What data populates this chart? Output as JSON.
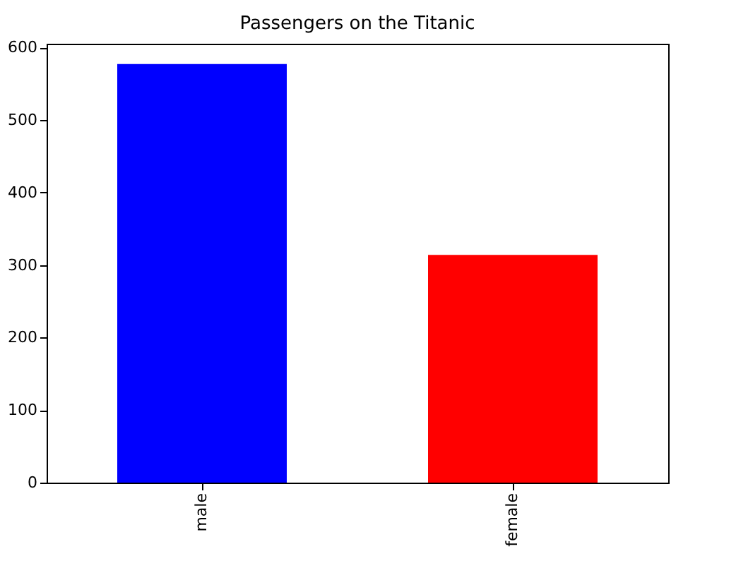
{
  "chart_data": {
    "type": "bar",
    "title": "Passengers on the Titanic",
    "categories": [
      "male",
      "female"
    ],
    "values": [
      577,
      314
    ],
    "colors": [
      "#0000ff",
      "#ff0000"
    ],
    "ylim": [
      0,
      605
    ],
    "yticks": [
      0,
      100,
      200,
      300,
      400,
      500,
      600
    ],
    "grid": false,
    "legend": false
  }
}
